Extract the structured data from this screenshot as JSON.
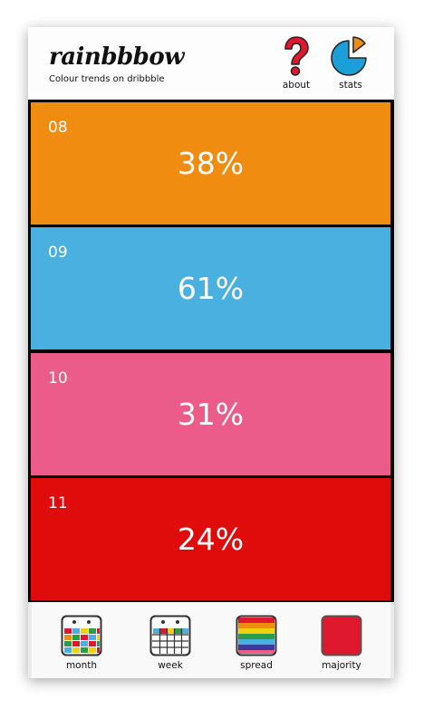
{
  "header": {
    "brand": "rainbbbow",
    "tagline": "Colour trends on dribbble",
    "about_label": "about",
    "stats_label": "stats"
  },
  "rows": [
    {
      "num": "08",
      "pct": "38%",
      "color": "#f08c10"
    },
    {
      "num": "09",
      "pct": "61%",
      "color": "#4ab0e0"
    },
    {
      "num": "10",
      "pct": "31%",
      "color": "#eb5c8a"
    },
    {
      "num": "11",
      "pct": "24%",
      "color": "#e00b0b"
    }
  ],
  "tabs": [
    {
      "label": "month"
    },
    {
      "label": "week"
    },
    {
      "label": "spread"
    },
    {
      "label": "majority"
    }
  ],
  "icons": {
    "about": "question-mark-icon",
    "stats": "pie-chart-icon",
    "month": "calendar-month-icon",
    "week": "calendar-week-icon",
    "spread": "rainbow-stripes-icon",
    "majority": "color-swatch-icon"
  }
}
